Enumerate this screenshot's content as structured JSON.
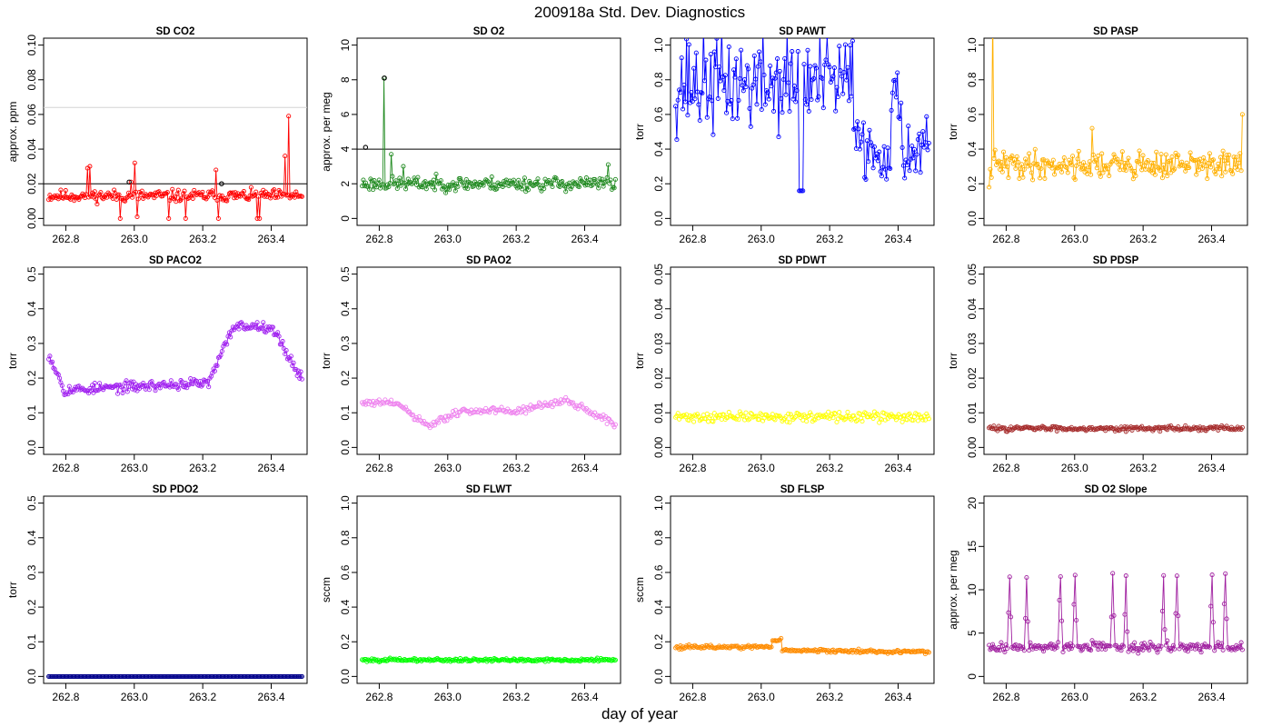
{
  "figure": {
    "title": "200918a   Std. Dev. Diagnostics",
    "xlabel": "day of year",
    "colors": {
      "co2": "#ff0000",
      "o2": "#228b22",
      "pawt": "#0000ff",
      "pasp": "#ffb000",
      "paco2": "#a020f0",
      "pao2": "#ee82ee",
      "pdwt": "#ffff00",
      "pdsp": "#a52a2a",
      "pdo2": "#00008b",
      "flwt": "#00ff00",
      "flsp": "#ff8c00",
      "o2slope": "#a020a0",
      "flag": "#000000",
      "ref_line": "#000000",
      "ref_line_light": "#d3d3d3"
    }
  },
  "chart_data": [
    {
      "type": "scatter",
      "title": "SD CO2",
      "ylabel": "approx. ppm",
      "xlim": [
        262.75,
        263.49
      ],
      "ylim": [
        0,
        0.1
      ],
      "yticks": [
        "0.00",
        "0.02",
        "0.04",
        "0.06",
        "0.08",
        "0.10"
      ],
      "xticks": [
        "262.8",
        "263.0",
        "263.2",
        "263.4"
      ],
      "hlines": [
        {
          "y": 0.02,
          "color": "ref_line"
        },
        {
          "y": 0.064,
          "color": "ref_line_light"
        }
      ],
      "series": [
        {
          "color": "co2",
          "x": [
            262.75,
            263.49
          ],
          "pattern": "noise",
          "base": 0.013,
          "noise": 0.003,
          "seed": 11,
          "spikes": [
            {
              "x": 262.865,
              "y": 0.029
            },
            {
              "x": 262.87,
              "y": 0.03
            },
            {
              "x": 262.96,
              "y": 0.0
            },
            {
              "x": 262.99,
              "y": 0.021
            },
            {
              "x": 263.0,
              "y": 0.032
            },
            {
              "x": 263.01,
              "y": 0.001
            },
            {
              "x": 263.1,
              "y": 0.0
            },
            {
              "x": 263.15,
              "y": 0.0
            },
            {
              "x": 263.24,
              "y": 0.028
            },
            {
              "x": 263.245,
              "y": 0.0
            },
            {
              "x": 263.36,
              "y": 0.0
            },
            {
              "x": 263.365,
              "y": 0.0
            },
            {
              "x": 263.44,
              "y": 0.036
            },
            {
              "x": 263.45,
              "y": 0.059
            }
          ]
        }
      ],
      "flags": [
        {
          "x": 262.985,
          "y": 0.021
        },
        {
          "x": 263.255,
          "y": 0.02
        }
      ]
    },
    {
      "type": "scatter",
      "title": "SD O2",
      "ylabel": "approx. per meg",
      "xlim": [
        262.75,
        263.49
      ],
      "ylim": [
        0,
        10
      ],
      "yticks": [
        "0",
        "2",
        "4",
        "6",
        "8",
        "10"
      ],
      "xticks": [
        "262.8",
        "263.0",
        "263.2",
        "263.4"
      ],
      "hlines": [
        {
          "y": 4,
          "color": "ref_line"
        }
      ],
      "series": [
        {
          "color": "o2",
          "x": [
            262.75,
            263.49
          ],
          "pattern": "noise",
          "base": 2.0,
          "noise": 0.35,
          "seed": 23,
          "spikes": [
            {
              "x": 262.815,
              "y": 8.1
            },
            {
              "x": 262.835,
              "y": 3.7
            },
            {
              "x": 262.87,
              "y": 3.0
            },
            {
              "x": 263.47,
              "y": 3.1
            }
          ]
        }
      ],
      "flags": [
        {
          "x": 262.76,
          "y": 4.1
        },
        {
          "x": 262.815,
          "y": 8.1
        }
      ]
    },
    {
      "type": "scatter",
      "title": "SD PAWT",
      "ylabel": "torr",
      "xlim": [
        262.75,
        263.49
      ],
      "ylim": [
        0,
        1.0
      ],
      "yticks": [
        "0.0",
        "0.2",
        "0.4",
        "0.6",
        "0.8",
        "1.0"
      ],
      "xticks": [
        "262.8",
        "263.0",
        "263.2",
        "263.4"
      ],
      "series": [
        {
          "color": "pawt",
          "x": [
            262.75,
            263.49
          ],
          "pattern": "pawt",
          "seed": 37
        }
      ]
    },
    {
      "type": "scatter",
      "title": "SD PASP",
      "ylabel": "torr",
      "xlim": [
        262.75,
        263.49
      ],
      "ylim": [
        0,
        1.0
      ],
      "yticks": [
        "0.0",
        "0.2",
        "0.4",
        "0.6",
        "0.8",
        "1.0"
      ],
      "xticks": [
        "262.8",
        "263.0",
        "263.2",
        "263.4"
      ],
      "series": [
        {
          "color": "pasp",
          "x": [
            262.75,
            263.49
          ],
          "pattern": "noise",
          "base": 0.31,
          "noise": 0.07,
          "seed": 41,
          "spikes": [
            {
              "x": 262.75,
              "y": 0.18
            },
            {
              "x": 262.76,
              "y": 1.2
            },
            {
              "x": 263.05,
              "y": 0.52
            },
            {
              "x": 263.49,
              "y": 0.6
            }
          ]
        }
      ]
    },
    {
      "type": "scatter",
      "title": "SD PACO2",
      "ylabel": "torr",
      "xlim": [
        262.75,
        263.49
      ],
      "ylim": [
        0,
        0.5
      ],
      "yticks": [
        "0.0",
        "0.1",
        "0.2",
        "0.3",
        "0.4",
        "0.5"
      ],
      "xticks": [
        "262.8",
        "263.0",
        "263.2",
        "263.4"
      ],
      "series": [
        {
          "color": "paco2",
          "x": [
            262.75,
            263.49
          ],
          "pattern": "paco2",
          "seed": 53
        }
      ]
    },
    {
      "type": "scatter",
      "title": "SD PAO2",
      "ylabel": "torr",
      "xlim": [
        262.75,
        263.49
      ],
      "ylim": [
        0,
        0.5
      ],
      "yticks": [
        "0.0",
        "0.1",
        "0.2",
        "0.3",
        "0.4",
        "0.5"
      ],
      "xticks": [
        "262.8",
        "263.0",
        "263.2",
        "263.4"
      ],
      "series": [
        {
          "color": "pao2",
          "x": [
            262.75,
            263.49
          ],
          "pattern": "pao2",
          "seed": 61,
          "line": false
        }
      ]
    },
    {
      "type": "scatter",
      "title": "SD PDWT",
      "ylabel": "torr",
      "xlim": [
        262.75,
        263.49
      ],
      "ylim": [
        0,
        0.05
      ],
      "yticks": [
        "0.00",
        "0.01",
        "0.02",
        "0.03",
        "0.04",
        "0.05"
      ],
      "xticks": [
        "262.8",
        "263.0",
        "263.2",
        "263.4"
      ],
      "series": [
        {
          "color": "pdwt",
          "x": [
            262.75,
            263.49
          ],
          "pattern": "noise",
          "base": 0.0088,
          "noise": 0.0012,
          "seed": 71,
          "line": false
        }
      ]
    },
    {
      "type": "scatter",
      "title": "SD PDSP",
      "ylabel": "torr",
      "xlim": [
        262.75,
        263.49
      ],
      "ylim": [
        0,
        0.05
      ],
      "yticks": [
        "0.00",
        "0.01",
        "0.02",
        "0.03",
        "0.04",
        "0.05"
      ],
      "xticks": [
        "262.8",
        "263.0",
        "263.2",
        "263.4"
      ],
      "series": [
        {
          "color": "pdsp",
          "x": [
            262.75,
            263.49
          ],
          "pattern": "noise",
          "base": 0.0055,
          "noise": 0.0006,
          "seed": 83
        }
      ]
    },
    {
      "type": "scatter",
      "title": "SD PDO2",
      "ylabel": "torr",
      "xlim": [
        262.75,
        263.49
      ],
      "ylim": [
        0,
        0.5
      ],
      "yticks": [
        "0.0",
        "0.1",
        "0.2",
        "0.3",
        "0.4",
        "0.5"
      ],
      "xticks": [
        "262.8",
        "263.0",
        "263.2",
        "263.4"
      ],
      "series": [
        {
          "color": "pdo2",
          "x": [
            262.75,
            263.49
          ],
          "pattern": "noise",
          "base": 0.0,
          "noise": 0.0,
          "seed": 97
        }
      ]
    },
    {
      "type": "scatter",
      "title": "SD FLWT",
      "ylabel": "sccm",
      "xlim": [
        262.75,
        263.49
      ],
      "ylim": [
        0,
        1.0
      ],
      "yticks": [
        "0.0",
        "0.2",
        "0.4",
        "0.6",
        "0.8",
        "1.0"
      ],
      "xticks": [
        "262.8",
        "263.0",
        "263.2",
        "263.4"
      ],
      "series": [
        {
          "color": "flwt",
          "x": [
            262.75,
            263.49
          ],
          "pattern": "noise",
          "base": 0.095,
          "noise": 0.008,
          "seed": 101
        }
      ]
    },
    {
      "type": "scatter",
      "title": "SD FLSP",
      "ylabel": "sccm",
      "xlim": [
        262.75,
        263.49
      ],
      "ylim": [
        0,
        1.0
      ],
      "yticks": [
        "0.0",
        "0.2",
        "0.4",
        "0.6",
        "0.8",
        "1.0"
      ],
      "xticks": [
        "262.8",
        "263.0",
        "263.2",
        "263.4"
      ],
      "series": [
        {
          "color": "flsp",
          "x": [
            262.75,
            263.49
          ],
          "pattern": "flsp",
          "seed": 113
        }
      ]
    },
    {
      "type": "scatter",
      "title": "SD O2 Slope",
      "ylabel": "approx. per meg",
      "xlim": [
        262.75,
        263.49
      ],
      "ylim": [
        0,
        20
      ],
      "yticks": [
        "0",
        "5",
        "10",
        "15",
        "20"
      ],
      "xticks": [
        "262.8",
        "263.0",
        "263.2",
        "263.4"
      ],
      "series": [
        {
          "color": "o2slope",
          "x": [
            262.75,
            263.49
          ],
          "pattern": "o2slope",
          "seed": 127,
          "peaks": [
            262.81,
            262.86,
            262.96,
            263.0,
            263.11,
            263.15,
            263.26,
            263.3,
            263.4,
            263.44
          ]
        }
      ]
    }
  ]
}
